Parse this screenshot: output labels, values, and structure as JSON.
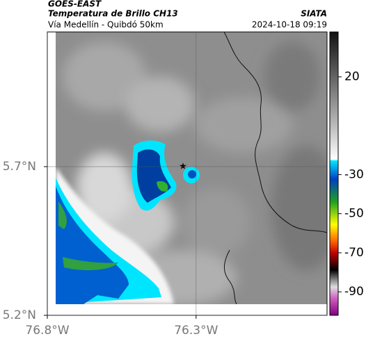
{
  "header": {
    "source": "GOES-EAST",
    "title": "Temperatura de Brillo CH13",
    "brand": "SIATA",
    "location": "Vía Medellín - Quibdó 50km",
    "timestamp": "2024-10-18 09:19"
  },
  "map": {
    "lat_range": [
      5.2,
      6.153
    ],
    "lon_range": [
      -76.8,
      -75.86
    ],
    "lat_ticks": [
      {
        "value": 5.7,
        "label": "5.7°N"
      },
      {
        "value": 5.2,
        "label": "5.2°N"
      }
    ],
    "lon_ticks": [
      {
        "value": -76.8,
        "label": "76.8°W"
      },
      {
        "value": -76.3,
        "label": "76.3°W"
      }
    ]
  },
  "colorbar": {
    "range": [
      -102,
      43
    ],
    "ticks": [
      20,
      -30,
      -50,
      -70,
      -90
    ]
  }
}
